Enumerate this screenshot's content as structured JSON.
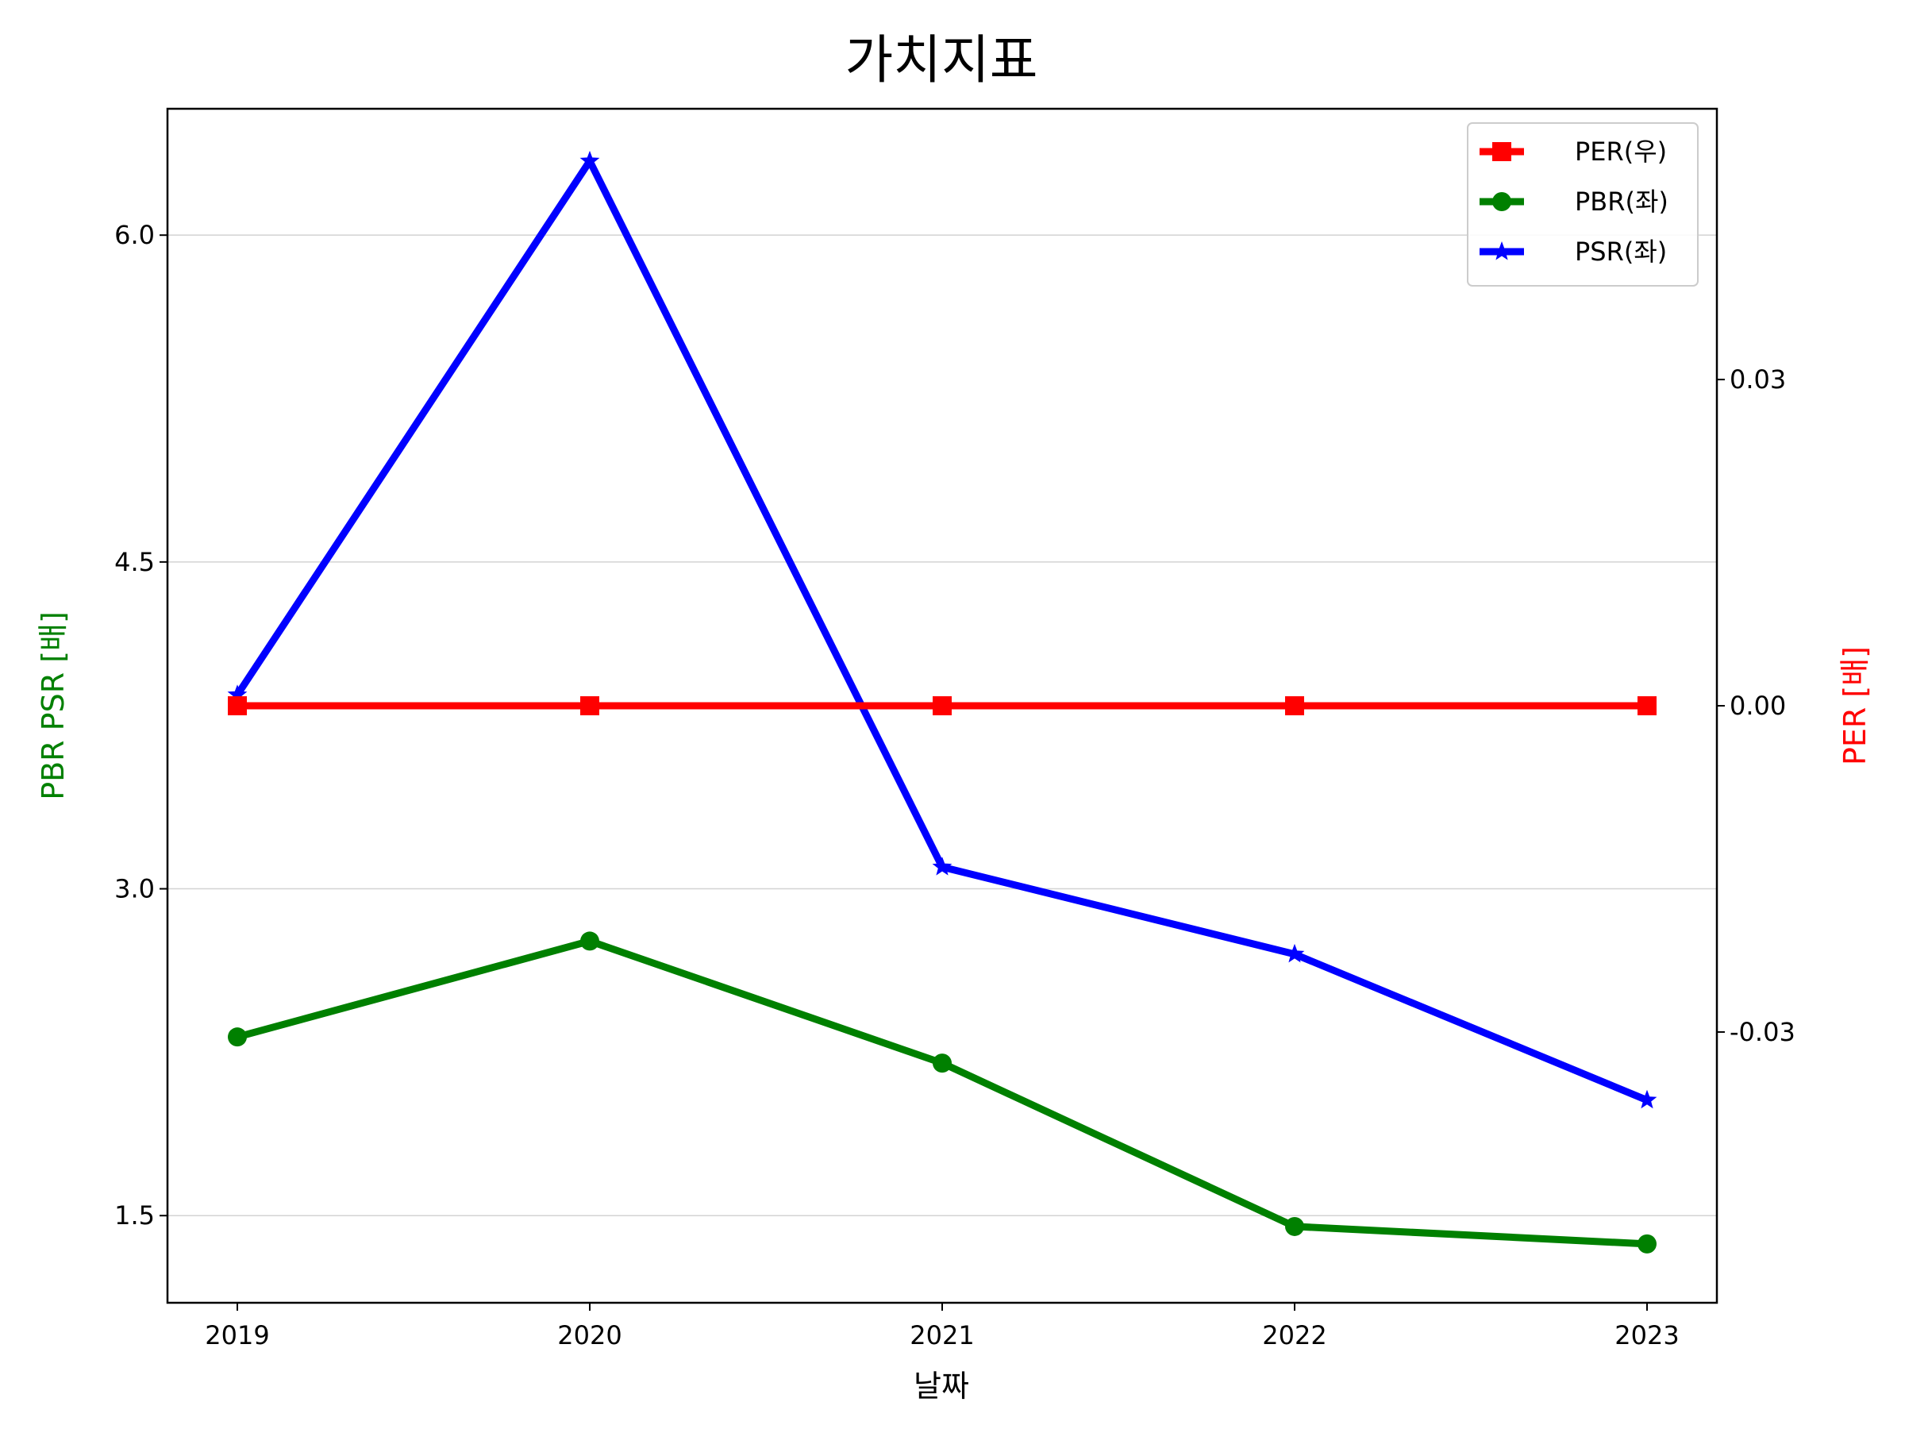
{
  "chart_data": {
    "type": "line",
    "title": "가치지표",
    "xlabel": "날짜",
    "ylabel_left": "PBR PSR [배]",
    "ylabel_right": "PER [배]",
    "ylabel_left_color": "#008000",
    "ylabel_right_color": "#ff0000",
    "categories": [
      "2019",
      "2020",
      "2021",
      "2022",
      "2023"
    ],
    "ylim_left": [
      1.1,
      6.58
    ],
    "ylim_right": [
      -0.0549,
      0.0549
    ],
    "yticks_left": [
      1.5,
      3.0,
      4.5,
      6.0
    ],
    "ytick_labels_left": [
      "1.5",
      "3.0",
      "4.5",
      "6.0"
    ],
    "yticks_right": [
      -0.03,
      0.0,
      0.03
    ],
    "ytick_labels_right": [
      "-0.03",
      "0.00",
      "0.03"
    ],
    "grid": "horizontal",
    "legend_position": "top-right",
    "series": [
      {
        "name": "PER(우)",
        "axis": "right",
        "color": "#ff0000",
        "marker": "square",
        "values": [
          0,
          0,
          0,
          0,
          0
        ]
      },
      {
        "name": "PBR(좌)",
        "axis": "left",
        "color": "#008000",
        "marker": "circle",
        "values": [
          2.32,
          2.76,
          2.2,
          1.45,
          1.37
        ]
      },
      {
        "name": "PSR(좌)",
        "axis": "left",
        "color": "#0000ff",
        "marker": "star",
        "values": [
          3.89,
          6.34,
          3.1,
          2.7,
          2.03
        ]
      }
    ]
  }
}
